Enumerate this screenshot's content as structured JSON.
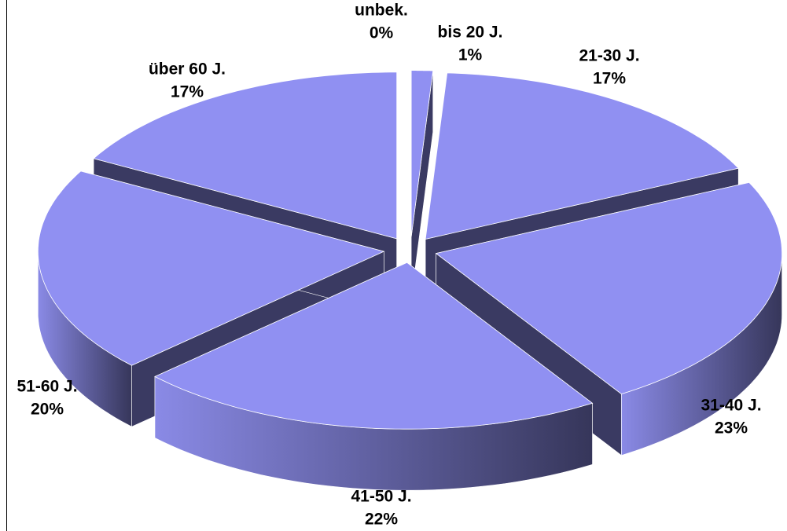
{
  "chart_data": {
    "type": "pie3d",
    "categories": [
      "unbek.",
      "bis 20 J.",
      "21-30 J.",
      "31-40 J.",
      "41-50 J.",
      "51-60 J.",
      "über 60 J."
    ],
    "values": [
      0,
      1,
      17,
      23,
      22,
      20,
      17
    ],
    "value_labels": [
      "0%",
      "1%",
      "17%",
      "23%",
      "22%",
      "20%",
      "17%"
    ],
    "color": "#9090f2"
  }
}
